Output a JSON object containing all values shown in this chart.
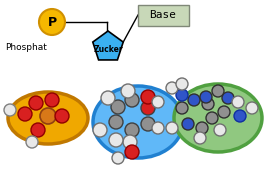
{
  "phosphat_label": "Phosphat",
  "zucker_label": "Zucker",
  "base_label": "Base",
  "p_circle_color": "#f5b800",
  "p_circle_border": "#d09000",
  "zucker_color": "#3ab0f0",
  "zucker_border": "#000000",
  "base_box_fc": "#c8d8b8",
  "base_box_ec": "#808878",
  "mol_phos_bg": "#f0a800",
  "mol_phos_border": "#c07800",
  "mol_sugar_bg": "#60b8f8",
  "mol_sugar_border": "#2080d0",
  "mol_base_bg": "#90c880",
  "mol_base_border": "#50a040",
  "C_gray": "#909090",
  "H_white": "#e8e8e8",
  "O_red": "#d82020",
  "N_blue": "#3055c8",
  "P_orange": "#d87818"
}
